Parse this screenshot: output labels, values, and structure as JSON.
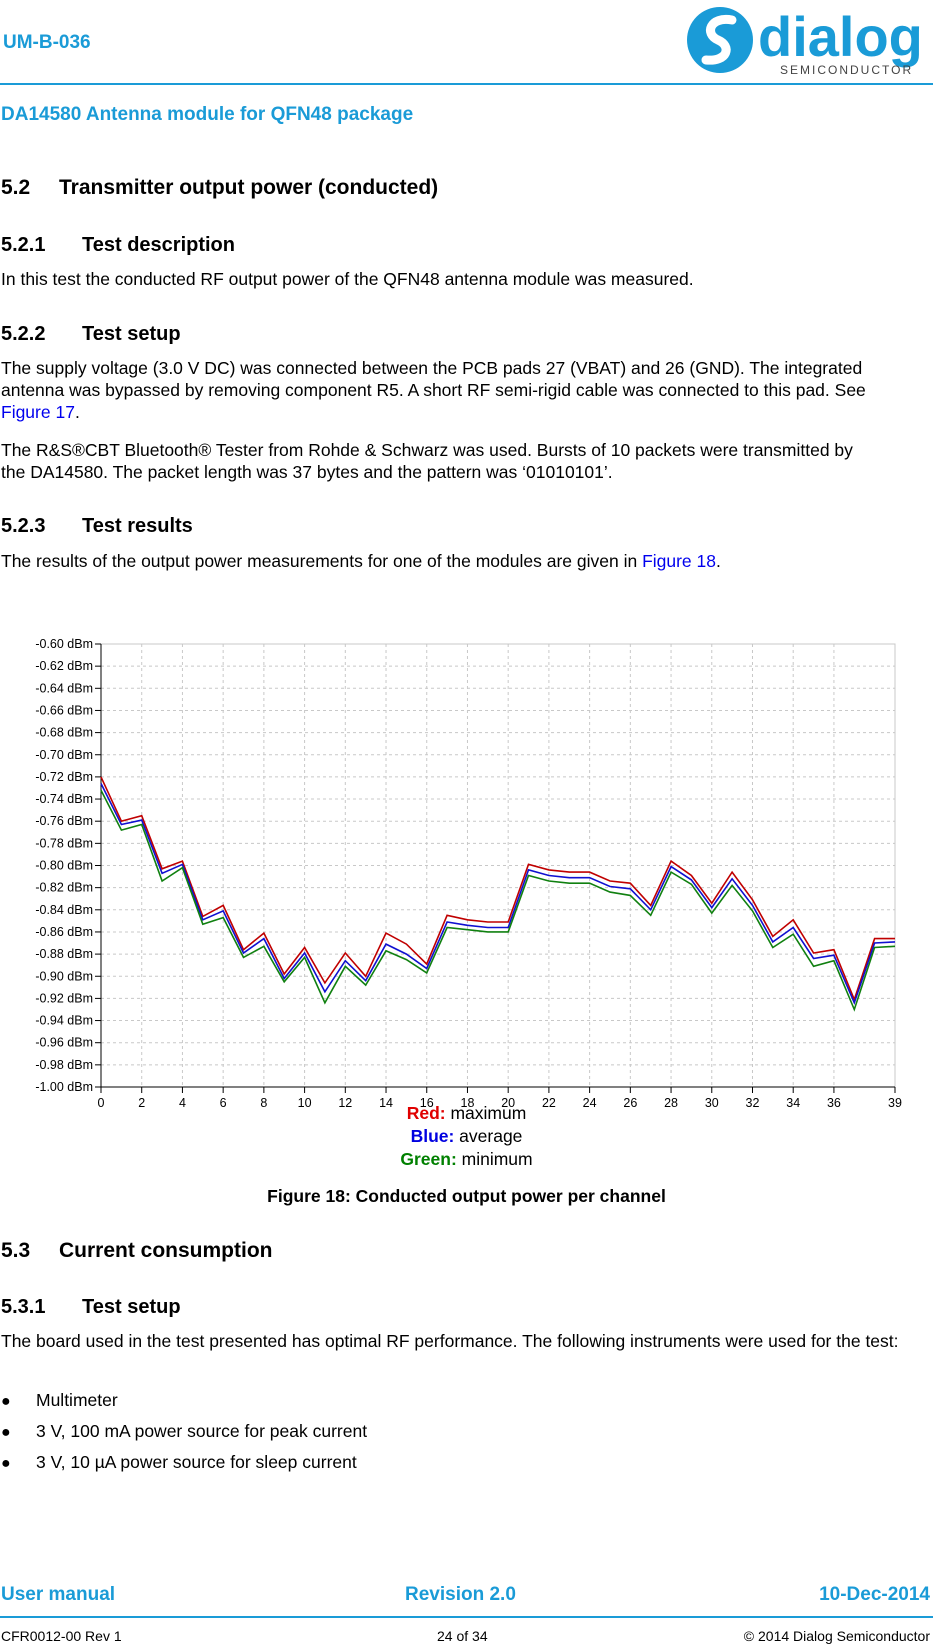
{
  "header": {
    "doc_id": "UM-B-036",
    "doc_title": "DA14580 Antenna module for QFN48 package",
    "logo_text": "dialog",
    "logo_subtext": "SEMICONDUCTOR"
  },
  "section_52": {
    "number": "5.2",
    "title": "Transmitter output power (conducted)",
    "s521": {
      "number": "5.2.1",
      "title": "Test description",
      "text": "In this test the conducted RF output power of the QFN48 antenna module was measured."
    },
    "s522": {
      "number": "5.2.2",
      "title": "Test setup",
      "p1_a": "The supply voltage (3.0 V DC) was connected between the PCB pads 27 (VBAT",
      "p1_b": ") and 26 (GND). The integrated antenna was bypassed by removing component R5. A short RF semi-rigid cable was connected to this pad. See ",
      "p1_link": "Figure 17",
      "p1_end": ".",
      "p2": "The R&S®CBT Bluetooth® Tester from Rohde & Schwarz was used. Bursts of 10 packets were transmitted by the DA14580. The packet length was 37 bytes and the pattern was ‘01010101’."
    },
    "s523": {
      "number": "5.2.3",
      "title": "Test results",
      "text": "The results of the output power measurements for one of the modules are given in ",
      "link": "Figure 18",
      "end": "."
    }
  },
  "chart_data": {
    "type": "line",
    "x": [
      0,
      1,
      2,
      3,
      4,
      5,
      6,
      7,
      8,
      9,
      10,
      11,
      12,
      13,
      14,
      15,
      16,
      17,
      18,
      19,
      20,
      21,
      22,
      23,
      24,
      25,
      26,
      27,
      28,
      29,
      30,
      31,
      32,
      33,
      34,
      35,
      36,
      37,
      38,
      39
    ],
    "x_ticks": [
      0,
      2,
      4,
      6,
      8,
      10,
      12,
      14,
      16,
      18,
      20,
      22,
      24,
      26,
      28,
      30,
      32,
      34,
      36,
      39
    ],
    "y_ticks": [
      -0.6,
      -0.62,
      -0.64,
      -0.66,
      -0.68,
      -0.7,
      -0.72,
      -0.74,
      -0.76,
      -0.78,
      -0.8,
      -0.82,
      -0.84,
      -0.86,
      -0.88,
      -0.9,
      -0.92,
      -0.94,
      -0.96,
      -0.98,
      -1.0
    ],
    "y_tick_suffix": " dBm",
    "ylim": [
      -1.0,
      -0.6
    ],
    "xlim": [
      0,
      39
    ],
    "grid": true,
    "series": [
      {
        "name": "Red",
        "color": "#c00000",
        "values": [
          -0.72,
          -0.76,
          -0.755,
          -0.803,
          -0.796,
          -0.846,
          -0.836,
          -0.876,
          -0.861,
          -0.898,
          -0.874,
          -0.906,
          -0.879,
          -0.9,
          -0.861,
          -0.871,
          -0.889,
          -0.845,
          -0.849,
          -0.851,
          -0.851,
          -0.799,
          -0.804,
          -0.806,
          -0.806,
          -0.814,
          -0.816,
          -0.836,
          -0.796,
          -0.809,
          -0.834,
          -0.806,
          -0.831,
          -0.864,
          -0.849,
          -0.879,
          -0.876,
          -0.921,
          -0.866,
          -0.866
        ]
      },
      {
        "name": "Blue",
        "color": "#1010d0",
        "values": [
          -0.726,
          -0.763,
          -0.759,
          -0.807,
          -0.799,
          -0.849,
          -0.841,
          -0.879,
          -0.866,
          -0.902,
          -0.879,
          -0.914,
          -0.886,
          -0.904,
          -0.871,
          -0.88,
          -0.893,
          -0.851,
          -0.854,
          -0.856,
          -0.856,
          -0.804,
          -0.809,
          -0.811,
          -0.811,
          -0.819,
          -0.821,
          -0.84,
          -0.801,
          -0.813,
          -0.838,
          -0.812,
          -0.836,
          -0.869,
          -0.856,
          -0.884,
          -0.881,
          -0.924,
          -0.87,
          -0.869
        ]
      },
      {
        "name": "Green",
        "color": "#108010",
        "values": [
          -0.732,
          -0.768,
          -0.763,
          -0.814,
          -0.802,
          -0.853,
          -0.847,
          -0.883,
          -0.873,
          -0.905,
          -0.883,
          -0.924,
          -0.891,
          -0.908,
          -0.877,
          -0.885,
          -0.897,
          -0.856,
          -0.858,
          -0.86,
          -0.86,
          -0.809,
          -0.814,
          -0.816,
          -0.816,
          -0.824,
          -0.827,
          -0.845,
          -0.806,
          -0.817,
          -0.843,
          -0.818,
          -0.841,
          -0.874,
          -0.862,
          -0.891,
          -0.886,
          -0.93,
          -0.874,
          -0.873
        ]
      }
    ]
  },
  "legend": {
    "red_label": "Red:",
    "red_text": " maximum",
    "red_color": "#e00000",
    "blue_label": "Blue:",
    "blue_text": " average",
    "blue_color": "#0000e0",
    "green_label": "Green:",
    "green_text": " minimum",
    "green_color": "#008000"
  },
  "figure_caption": "Figure 18: Conducted output power per channel",
  "section_53": {
    "number": "5.3",
    "title": "Current consumption",
    "s531": {
      "number": "5.3.1",
      "title": "Test setup",
      "text": "The board used in the test presented has optimal RF performance. The following instruments were used for the test:",
      "bullets": [
        "Multimeter",
        "3 V, 100 mA power source for peak current",
        "3 V, 10 µA power source for sleep current"
      ]
    }
  },
  "footer": {
    "left": "User manual",
    "center": "Revision 2.0",
    "right": "10-Dec-2014",
    "small_left": "CFR0012-00 Rev 1",
    "small_center": "24 of 34",
    "small_right": "© 2014 Dialog Semiconductor"
  }
}
